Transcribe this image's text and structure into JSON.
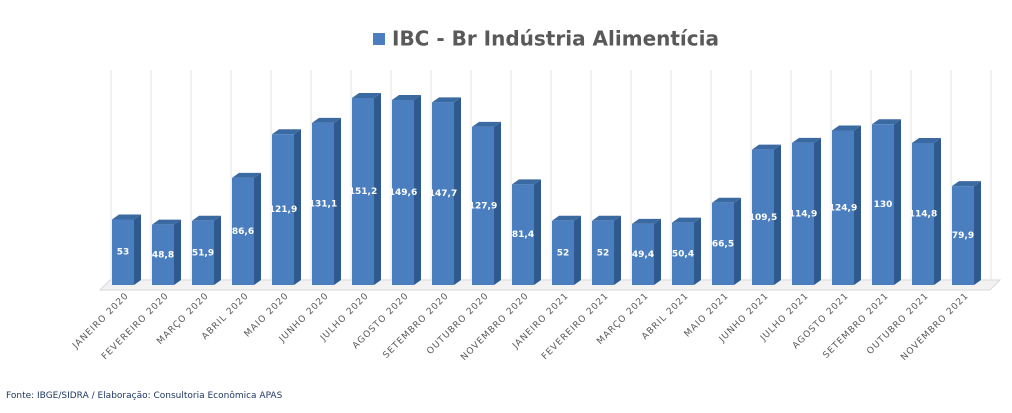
{
  "chart_data": {
    "type": "bar3d",
    "title": "IBC - Br Indústria Alimentícia",
    "categories": [
      "JANEIRO 2020",
      "FEVEREIRO 2020",
      "MARÇO 2020",
      "ABRIL 2020",
      "MAIO 2020",
      "JUNHO 2020",
      "JULHO 2020",
      "AGOSTO 2020",
      "SETEMBRO 2020",
      "OUTUBRO 2020",
      "NOVEMBRO 2020",
      "JANEIRO 2021",
      "FEVEREIRO 2021",
      "MARÇO 2021",
      "ABRIL 2021",
      "MAIO 2021",
      "JUNHO 2021",
      "JULHO 2021",
      "AGOSTO 2021",
      "SETEMBRO 2021",
      "OUTUBRO 2021",
      "NOVEMBRO 2021"
    ],
    "series": [
      {
        "name": "IBC - Br Indústria Alimentícia",
        "color": "#4a7ebf",
        "values": [
          53,
          48.8,
          51.9,
          86.6,
          121.9,
          131.1,
          151.2,
          149.6,
          147.7,
          127.9,
          81.4,
          52,
          52,
          49.4,
          50.4,
          66.5,
          109.5,
          114.9,
          124.9,
          130,
          114.8,
          79.9
        ],
        "value_labels": [
          "53",
          "48,8",
          "51,9",
          "86,6",
          "121,9",
          "131,1",
          "151,2",
          "149,6",
          "147,7",
          "127,9",
          "81,4",
          "52",
          "52",
          "49,4",
          "50,4",
          "66,5",
          "109,5",
          "114,9",
          "124,9",
          "130",
          "114,8",
          "79,9"
        ]
      }
    ],
    "grid": true,
    "source": "Fonte: IBGE/SIDRA / Elaboração: Consultoria Econômica APAS"
  }
}
